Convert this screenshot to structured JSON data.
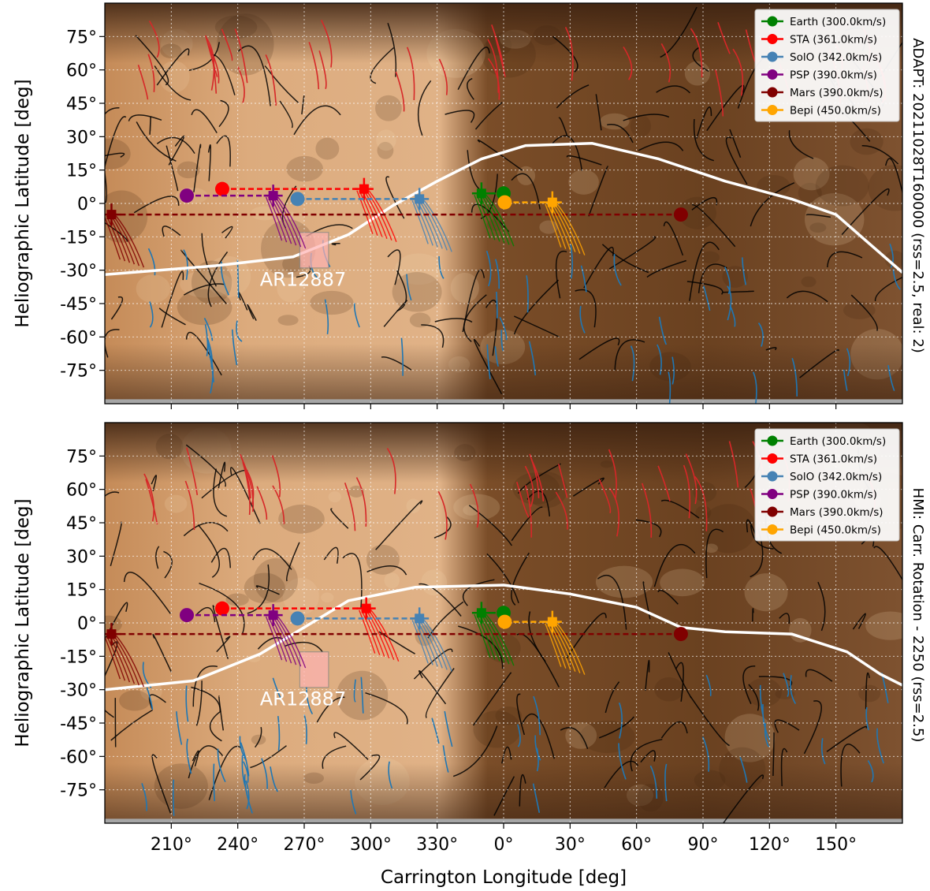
{
  "chart_data": [
    {
      "type": "scatter",
      "panel": "top",
      "side_title": "ADAPT: 20211028T160000 (rss=2.5, real: 2)",
      "ylabel": "Heliographic Latitude [deg]",
      "xlabel": "",
      "x_ticks": [
        "210°",
        "240°",
        "270°",
        "300°",
        "330°",
        "0°",
        "30°",
        "60°",
        "90°",
        "120°",
        "150°"
      ],
      "y_ticks": [
        "75°",
        "60°",
        "45°",
        "30°",
        "15°",
        "0°",
        "-15°",
        "-30°",
        "-45°",
        "-60°",
        "-75°"
      ],
      "xlim": [
        180,
        540
      ],
      "ylim": [
        -90,
        90
      ],
      "grid": true,
      "legend_position": "top-right",
      "annotation": "AR12887",
      "series": [
        {
          "name": "Earth",
          "speed": "300.0",
          "color": "#008000",
          "footpoint_lon": 350,
          "footpoint_lat": 4.5,
          "marker_lon": 0,
          "marker_lat": 4.5
        },
        {
          "name": "STA",
          "speed": "361.0",
          "color": "#ff0000",
          "footpoint_lon": 297,
          "footpoint_lat": 6.5,
          "marker_lon": 233,
          "marker_lat": 6.5
        },
        {
          "name": "SolO",
          "speed": "342.0",
          "color": "#4682b4",
          "footpoint_lon": 322,
          "footpoint_lat": 2.0,
          "marker_lon": 267,
          "marker_lat": 2.0
        },
        {
          "name": "PSP",
          "speed": "390.0",
          "color": "#800080",
          "footpoint_lon": 256,
          "footpoint_lat": 3.5,
          "marker_lon": 217,
          "marker_lat": 3.5
        },
        {
          "name": "Mars",
          "speed": "390.0",
          "color": "#800000",
          "footpoint_lon": 183,
          "footpoint_lat": -5,
          "marker_lon": 80,
          "marker_lat": -5
        },
        {
          "name": "Bepi",
          "speed": "450.0",
          "color": "#ffa500",
          "footpoint_lon": 22,
          "footpoint_lat": 0.5,
          "marker_lon": 0.5,
          "marker_lat": 0.5
        }
      ]
    },
    {
      "type": "scatter",
      "panel": "bottom",
      "side_title": "HMI: Carr. Rotation - 2250 (rss=2.5)",
      "ylabel": "Heliographic Latitude [deg]",
      "xlabel": "Carrington Longitude [deg]",
      "x_ticks": [
        "210°",
        "240°",
        "270°",
        "300°",
        "330°",
        "0°",
        "30°",
        "60°",
        "90°",
        "120°",
        "150°"
      ],
      "y_ticks": [
        "75°",
        "60°",
        "45°",
        "30°",
        "15°",
        "0°",
        "-15°",
        "-30°",
        "-45°",
        "-60°",
        "-75°"
      ],
      "xlim": [
        180,
        540
      ],
      "ylim": [
        -90,
        90
      ],
      "grid": true,
      "legend_position": "top-right",
      "annotation": "AR12887",
      "series": [
        {
          "name": "Earth",
          "speed": "300.0",
          "color": "#008000",
          "footpoint_lon": 350,
          "footpoint_lat": 4.5,
          "marker_lon": 0,
          "marker_lat": 4.5
        },
        {
          "name": "STA",
          "speed": "361.0",
          "color": "#ff0000",
          "footpoint_lon": 298,
          "footpoint_lat": 6.5,
          "marker_lon": 233,
          "marker_lat": 6.5
        },
        {
          "name": "SolO",
          "speed": "342.0",
          "color": "#4682b4",
          "footpoint_lon": 322,
          "footpoint_lat": 2.0,
          "marker_lon": 267,
          "marker_lat": 2.0
        },
        {
          "name": "PSP",
          "speed": "390.0",
          "color": "#800080",
          "footpoint_lon": 256,
          "footpoint_lat": 3.5,
          "marker_lon": 217,
          "marker_lat": 3.5
        },
        {
          "name": "Mars",
          "speed": "390.0",
          "color": "#800000",
          "footpoint_lon": 183,
          "footpoint_lat": -5,
          "marker_lon": 80,
          "marker_lat": -5
        },
        {
          "name": "Bepi",
          "speed": "450.0",
          "color": "#ffa500",
          "footpoint_lon": 22,
          "footpoint_lat": 0.5,
          "marker_lon": 0.5,
          "marker_lat": 0.5
        }
      ]
    }
  ],
  "legend": {
    "unit": "km/s",
    "entries": [
      {
        "name": "Earth",
        "speed": "300.0",
        "label_text": "Earth (300.0km/s)",
        "color": "#008000"
      },
      {
        "name": "STA",
        "speed": "361.0",
        "label_text": "STA (361.0km/s)",
        "color": "#ff0000"
      },
      {
        "name": "SolO",
        "speed": "342.0",
        "label_text": "SolO (342.0km/s)",
        "color": "#4682b4"
      },
      {
        "name": "PSP",
        "speed": "390.0",
        "label_text": "PSP (390.0km/s)",
        "color": "#800080"
      },
      {
        "name": "Mars",
        "speed": "390.0",
        "label_text": "Mars (390.0km/s)",
        "color": "#800000"
      },
      {
        "name": "Bepi",
        "speed": "450.0",
        "label_text": "Bepi (450.0km/s)",
        "color": "#ffa500"
      }
    ]
  },
  "colors": {
    "map_light": "#d9a677",
    "map_dark": "#5a3516",
    "open_negative": "#1f77b4",
    "open_positive": "#d62728",
    "closed": "#000000",
    "neutral_line": "#ffffff",
    "no_data": "#a6a6a6"
  }
}
